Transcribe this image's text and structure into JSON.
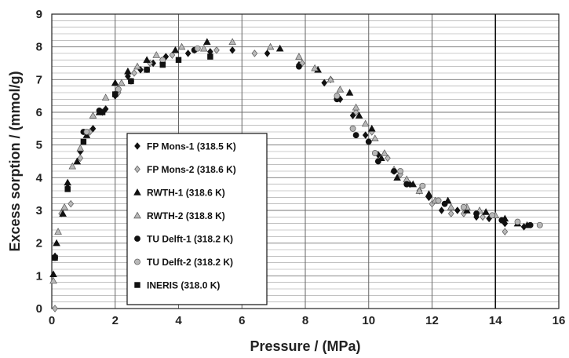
{
  "chart_data": {
    "type": "scatter",
    "title": "",
    "xlabel": "Pressure / (MPa)",
    "ylabel": "Excess sorption / (mmol/g)",
    "xlim": [
      0,
      16
    ],
    "ylim": [
      0,
      9
    ],
    "xticks": [
      "0",
      "2",
      "4",
      "6",
      "8",
      "10",
      "12",
      "14",
      "16"
    ],
    "yticks": [
      "0",
      "1",
      "2",
      "3",
      "4",
      "5",
      "6",
      "7",
      "8",
      "9"
    ],
    "grid": "major vertical lines every 2 MPa, horizontal lines every 0.2 mmol/g",
    "legend_position": "center-left",
    "colors": {
      "black": "#111111",
      "gray": "#b8b8b8",
      "grid": "#888888"
    },
    "series": [
      {
        "name": "FP Mons-1 (318.5 K)",
        "marker": "diamond",
        "fill": "black",
        "points": [
          [
            0.1,
            1.6
          ],
          [
            0.5,
            3.7
          ],
          [
            0.9,
            4.8
          ],
          [
            1.3,
            5.5
          ],
          [
            1.7,
            6.1
          ],
          [
            2.0,
            6.5
          ],
          [
            2.4,
            7.1
          ],
          [
            2.8,
            7.3
          ],
          [
            3.2,
            7.5
          ],
          [
            3.6,
            7.7
          ],
          [
            4.3,
            7.8
          ],
          [
            5.0,
            7.85
          ],
          [
            5.7,
            7.9
          ],
          [
            6.8,
            7.8
          ],
          [
            7.8,
            7.45
          ],
          [
            8.6,
            6.9
          ],
          [
            9.1,
            6.4
          ],
          [
            9.5,
            5.9
          ],
          [
            9.9,
            5.3
          ],
          [
            10.3,
            4.7
          ],
          [
            10.8,
            4.2
          ],
          [
            11.3,
            3.8
          ],
          [
            11.9,
            3.4
          ],
          [
            12.3,
            3.0
          ],
          [
            12.8,
            3.0
          ],
          [
            13.4,
            2.8
          ],
          [
            13.8,
            2.75
          ],
          [
            14.3,
            2.6
          ],
          [
            14.9,
            2.5
          ]
        ]
      },
      {
        "name": "FP Mons-2 (318.6 K)",
        "marker": "diamond",
        "fill": "gray",
        "points": [
          [
            0.1,
            0.0
          ],
          [
            0.3,
            2.9
          ],
          [
            0.6,
            3.2
          ],
          [
            0.9,
            4.6
          ],
          [
            1.2,
            5.4
          ],
          [
            1.6,
            6.0
          ],
          [
            2.1,
            6.6
          ],
          [
            2.6,
            7.2
          ],
          [
            3.1,
            7.5
          ],
          [
            3.8,
            7.75
          ],
          [
            4.5,
            7.9
          ],
          [
            5.2,
            7.9
          ],
          [
            6.4,
            7.8
          ],
          [
            7.9,
            7.5
          ],
          [
            8.8,
            7.0
          ],
          [
            9.6,
            6.0
          ],
          [
            10.1,
            5.4
          ],
          [
            10.6,
            4.6
          ],
          [
            11.0,
            4.1
          ],
          [
            11.6,
            3.6
          ],
          [
            12.0,
            3.2
          ],
          [
            12.6,
            2.9
          ],
          [
            13.0,
            2.9
          ],
          [
            13.6,
            2.8
          ],
          [
            14.3,
            2.35
          ]
        ]
      },
      {
        "name": "RWTH-1 (318.6 K)",
        "marker": "triangle",
        "fill": "black",
        "points": [
          [
            0.05,
            1.05
          ],
          [
            0.15,
            2.0
          ],
          [
            0.35,
            2.9
          ],
          [
            0.5,
            3.85
          ],
          [
            0.8,
            4.5
          ],
          [
            1.1,
            5.3
          ],
          [
            1.5,
            6.0
          ],
          [
            2.0,
            6.9
          ],
          [
            2.4,
            7.25
          ],
          [
            3.0,
            7.6
          ],
          [
            3.9,
            7.9
          ],
          [
            4.9,
            8.15
          ],
          [
            7.2,
            7.95
          ],
          [
            8.4,
            7.3
          ],
          [
            9.4,
            6.6
          ],
          [
            9.7,
            5.9
          ],
          [
            10.1,
            5.5
          ],
          [
            10.4,
            4.6
          ],
          [
            10.9,
            4.0
          ],
          [
            11.4,
            3.8
          ],
          [
            11.9,
            3.5
          ],
          [
            12.5,
            3.3
          ],
          [
            13.1,
            3.0
          ],
          [
            13.7,
            2.95
          ],
          [
            14.3,
            2.75
          ],
          [
            14.7,
            2.6
          ],
          [
            15.0,
            2.55
          ]
        ]
      },
      {
        "name": "RWTH-2 (318.8 K)",
        "marker": "triangle",
        "fill": "gray",
        "points": [
          [
            0.05,
            0.85
          ],
          [
            0.2,
            2.35
          ],
          [
            0.4,
            3.1
          ],
          [
            0.65,
            4.35
          ],
          [
            0.9,
            4.9
          ],
          [
            1.3,
            5.9
          ],
          [
            1.7,
            6.45
          ],
          [
            2.2,
            6.9
          ],
          [
            2.7,
            7.4
          ],
          [
            3.3,
            7.75
          ],
          [
            4.1,
            8.0
          ],
          [
            4.8,
            7.95
          ],
          [
            5.7,
            8.15
          ],
          [
            6.9,
            8.0
          ],
          [
            7.8,
            7.7
          ],
          [
            8.3,
            7.35
          ],
          [
            8.8,
            7.0
          ],
          [
            9.1,
            6.7
          ],
          [
            9.6,
            6.15
          ],
          [
            9.9,
            5.65
          ],
          [
            10.2,
            5.2
          ],
          [
            10.5,
            4.75
          ],
          [
            10.8,
            4.25
          ],
          [
            11.2,
            3.95
          ],
          [
            11.6,
            3.6
          ],
          [
            12.1,
            3.3
          ],
          [
            12.6,
            3.1
          ],
          [
            13.1,
            3.1
          ],
          [
            13.5,
            3.0
          ],
          [
            14.0,
            2.85
          ]
        ]
      },
      {
        "name": "TU Delft-1 (318.2 K)",
        "marker": "circle",
        "fill": "black",
        "points": [
          [
            0.1,
            1.55
          ],
          [
            1.0,
            5.4
          ],
          [
            1.5,
            6.05
          ],
          [
            2.0,
            6.55
          ],
          [
            2.5,
            6.95
          ],
          [
            3.0,
            7.3
          ],
          [
            3.5,
            7.5
          ],
          [
            4.5,
            7.9
          ],
          [
            7.8,
            7.4
          ],
          [
            9.0,
            6.4
          ],
          [
            9.6,
            5.3
          ],
          [
            10.0,
            5.1
          ],
          [
            10.3,
            4.5
          ],
          [
            10.8,
            4.2
          ],
          [
            11.2,
            3.8
          ],
          [
            12.4,
            3.2
          ],
          [
            13.4,
            2.9
          ],
          [
            14.2,
            2.7
          ],
          [
            15.1,
            2.55
          ]
        ]
      },
      {
        "name": "TU Delft-2 (318.2 K)",
        "marker": "circle",
        "fill": "gray",
        "points": [
          [
            1.1,
            5.4
          ],
          [
            2.1,
            6.7
          ],
          [
            3.5,
            7.6
          ],
          [
            4.6,
            7.95
          ],
          [
            9.0,
            6.5
          ],
          [
            9.5,
            5.5
          ],
          [
            10.2,
            4.75
          ],
          [
            11.0,
            4.2
          ],
          [
            11.7,
            3.75
          ],
          [
            12.2,
            3.3
          ],
          [
            13.0,
            3.1
          ],
          [
            13.9,
            2.85
          ],
          [
            14.7,
            2.65
          ],
          [
            15.4,
            2.55
          ]
        ]
      },
      {
        "name": "INERIS (318.0 K)",
        "marker": "square",
        "fill": "black",
        "points": [
          [
            0.1,
            1.55
          ],
          [
            0.5,
            3.65
          ],
          [
            1.0,
            5.1
          ],
          [
            1.6,
            6.0
          ],
          [
            2.0,
            6.55
          ],
          [
            2.5,
            6.95
          ],
          [
            3.0,
            7.3
          ],
          [
            3.5,
            7.45
          ],
          [
            4.0,
            7.6
          ],
          [
            5.0,
            7.7
          ]
        ]
      }
    ]
  }
}
